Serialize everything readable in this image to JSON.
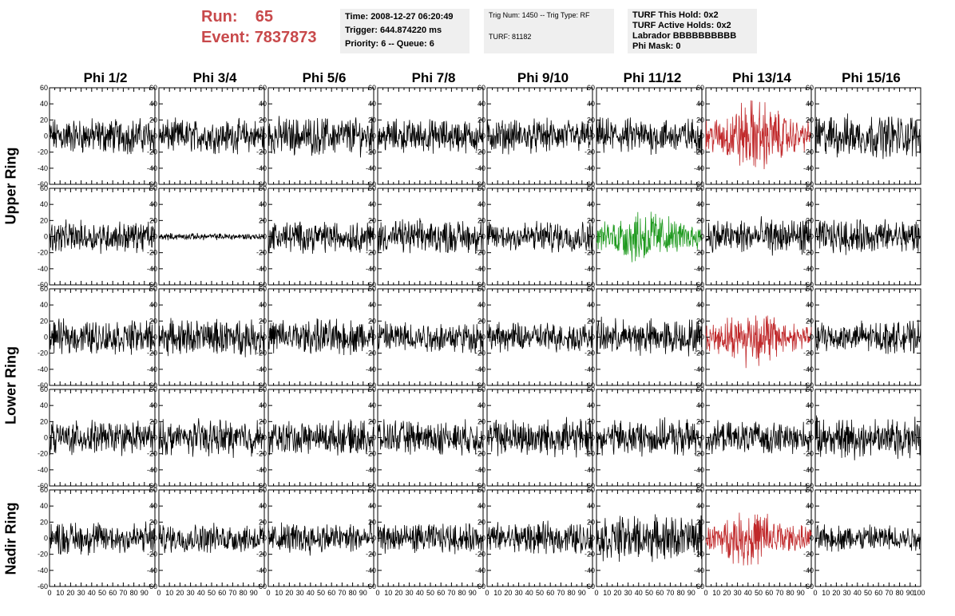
{
  "header": {
    "run_label": "Run:",
    "run_value": "65",
    "event_label": "Event:",
    "event_value": "7837873",
    "accent_color": "#c8494b"
  },
  "info": {
    "time": "Time: 2008-12-27 06:20:49",
    "trigger": "Trigger: 644.874220 ms",
    "priority": "Priority: 6 -- Queue: 6",
    "trig": "Trig Num: 1450 -- Trig Type: RF",
    "turf": "TURF: 81182",
    "hold": "TURF This Hold: 0x2",
    "active": "TURF Active Holds: 0x2",
    "labrador": "Labrador BBBBBBBBBB",
    "phimask": "Phi Mask: 0"
  },
  "chart_data": {
    "type": "line",
    "columns": [
      "Phi 1/2",
      "Phi 3/4",
      "Phi 5/6",
      "Phi 7/8",
      "Phi 9/10",
      "Phi 11/12",
      "Phi 13/14",
      "Phi 15/16"
    ],
    "rings": [
      "Upper Ring",
      "Lower Ring",
      "Nadir Ring"
    ],
    "xlim": [
      0,
      100
    ],
    "ylim": [
      -60,
      60
    ],
    "x_ticks": [
      0,
      10,
      20,
      30,
      40,
      50,
      60,
      70,
      80,
      90
    ],
    "y_ticks": [
      -60,
      -40,
      -20,
      0,
      20,
      40,
      60
    ],
    "x_tick_last": "100",
    "rows": 5,
    "samples": 256,
    "amplitudes": [
      [
        16,
        15,
        17,
        15,
        15,
        16,
        28,
        19
      ],
      [
        14,
        3,
        14,
        15,
        14,
        22,
        16,
        15
      ],
      [
        15,
        16,
        16,
        14,
        13,
        16,
        22,
        14
      ],
      [
        15,
        16,
        15,
        15,
        17,
        16,
        14,
        18
      ],
      [
        15,
        13,
        14,
        13,
        14,
        20,
        22,
        12
      ]
    ],
    "trace_colors": [
      [
        "#000",
        "#000",
        "#000",
        "#000",
        "#000",
        "#000",
        "#c0282a",
        "#000"
      ],
      [
        "#000",
        "#000",
        "#000",
        "#000",
        "#000",
        "#1f9a1f",
        "#000",
        "#000"
      ],
      [
        "#000",
        "#000",
        "#000",
        "#000",
        "#000",
        "#000",
        "#c0282a",
        "#000"
      ],
      [
        "#000",
        "#000",
        "#000",
        "#000",
        "#000",
        "#000",
        "#000",
        "#000"
      ],
      [
        "#000",
        "#000",
        "#000",
        "#000",
        "#000",
        "#000",
        "#c0282a",
        "#000"
      ]
    ]
  }
}
